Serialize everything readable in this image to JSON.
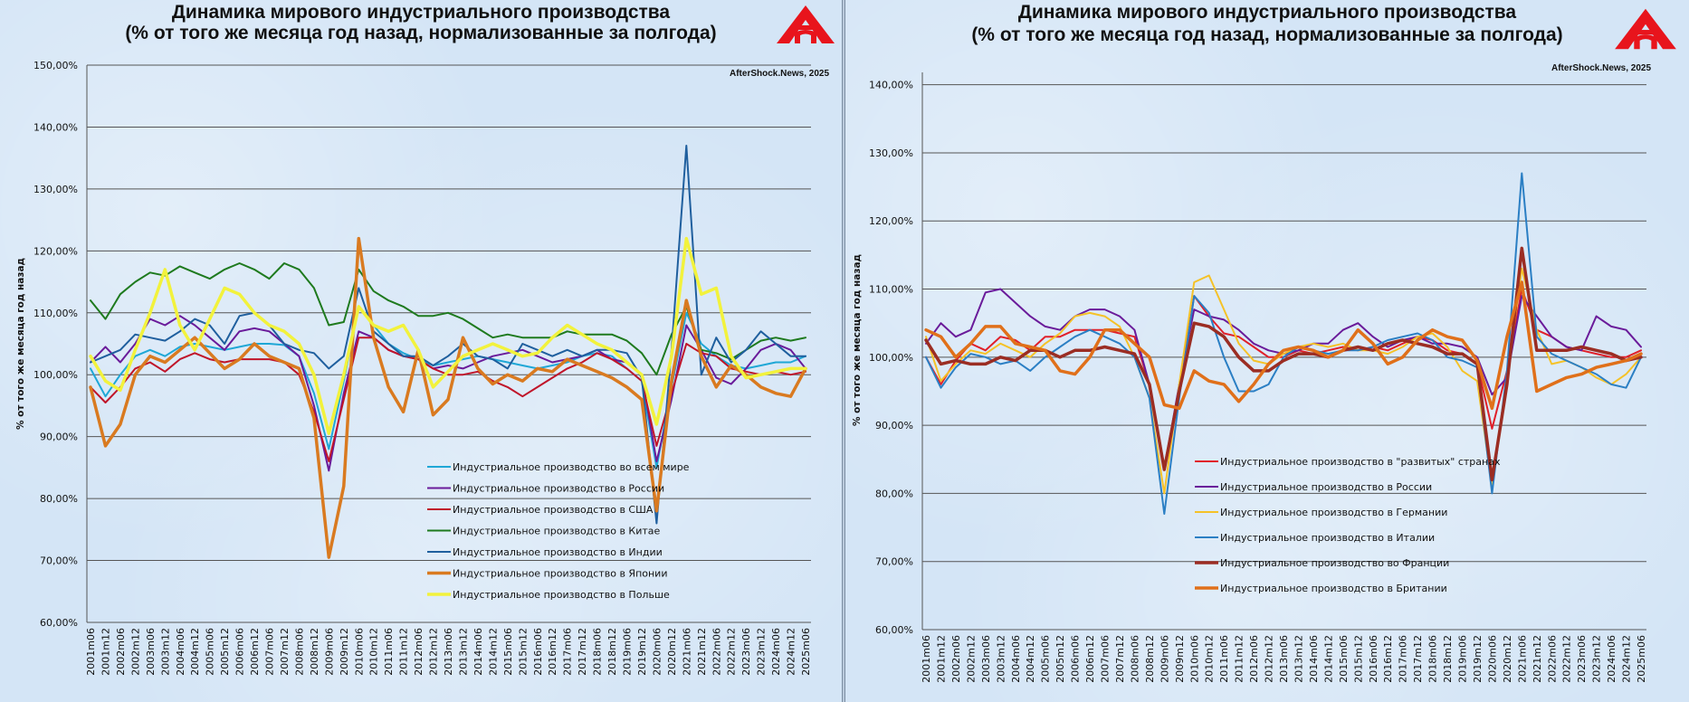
{
  "left_panel": {
    "title_line1": "Динамика мирового индустриального производства",
    "title_line2": "(% от того же месяца год назад, нормализованные за полгода)",
    "credit": "AfterShock.News, 2025",
    "logo": "aftershock-logo-icon"
  },
  "right_panel": {
    "title_line1": "Динамика мирового индустриального производства",
    "title_line2": "(% от того же месяца год назад, нормализованные за полгода)",
    "credit": "AfterShock.News, 2025",
    "logo": "aftershock-logo-icon"
  },
  "chart_data": [
    {
      "type": "line",
      "title": "Динамика мирового индустриального производства (% от того же месяца год назад, нормализованные за полгода)",
      "xlabel": "",
      "ylabel": "% от того же месяца год назад",
      "ylim": [
        60,
        150
      ],
      "yticks": [
        "60,00%",
        "70,00%",
        "80,00%",
        "90,00%",
        "100,00%",
        "110,00%",
        "120,00%",
        "130,00%",
        "140,00%",
        "150,00%"
      ],
      "ytick_values": [
        60,
        70,
        80,
        90,
        100,
        110,
        120,
        130,
        140,
        150
      ],
      "grid": true,
      "legend_position": "bottom-center",
      "x": [
        "2001m06",
        "2001m12",
        "2002m06",
        "2002m12",
        "2003m06",
        "2003m12",
        "2004m06",
        "2004m12",
        "2005m06",
        "2005m12",
        "2006m06",
        "2006m12",
        "2007m06",
        "2007m12",
        "2008m06",
        "2008m12",
        "2009m06",
        "2009m12",
        "2010m06",
        "2010m12",
        "2011m06",
        "2011m12",
        "2012m06",
        "2012m12",
        "2013m06",
        "2013m12",
        "2014m06",
        "2014m12",
        "2015m06",
        "2015m12",
        "2016m06",
        "2016m12",
        "2017m06",
        "2017m12",
        "2018m06",
        "2018m12",
        "2019m06",
        "2019m12",
        "2020m06",
        "2020m12",
        "2021m06",
        "2021m12",
        "2022m06",
        "2022m12",
        "2023m06",
        "2023m12",
        "2024m06",
        "2024m12",
        "2025m06"
      ],
      "series": [
        {
          "name": "Индустриальное производство во всем мире",
          "color": "#1fa7d6",
          "width": 2,
          "values": [
            101,
            96.5,
            100,
            103,
            104,
            103,
            104.5,
            105,
            104.5,
            104,
            104.5,
            105,
            105,
            104.8,
            103,
            97,
            88,
            99,
            111,
            108,
            105,
            103.5,
            102.5,
            101.5,
            102,
            102.5,
            103,
            102.5,
            102,
            101.5,
            101,
            101.5,
            102,
            103,
            103.5,
            103,
            101,
            99,
            85,
            98,
            110,
            105,
            103,
            101.5,
            101,
            101.5,
            102,
            102,
            103
          ]
        },
        {
          "name": "Индустриальное производство в России",
          "color": "#6a1b9a",
          "width": 2,
          "values": [
            102,
            104.5,
            102,
            105,
            109,
            108,
            109.5,
            108,
            106,
            104,
            107,
            107.5,
            107,
            105,
            103,
            95,
            84.5,
            97,
            107,
            106,
            104,
            103,
            102.5,
            101,
            101.5,
            101,
            102,
            103,
            103.5,
            104,
            103,
            102,
            102.5,
            103,
            104,
            102.5,
            102,
            100,
            86,
            96,
            108,
            104,
            99.5,
            98.5,
            101,
            104,
            105,
            104,
            101
          ]
        },
        {
          "name": "Индустриальное производство в США",
          "color": "#c0152a",
          "width": 2,
          "values": [
            98,
            95.5,
            98,
            101,
            102,
            100.5,
            102.5,
            103.5,
            102.5,
            102,
            102.5,
            102.5,
            102.5,
            102,
            100,
            94,
            86,
            96,
            106,
            106,
            104,
            103,
            102.5,
            101,
            100,
            100,
            100.5,
            99,
            98,
            96.5,
            98,
            99.5,
            101,
            102,
            103.5,
            102.5,
            101,
            99,
            88.5,
            97,
            105,
            103.5,
            103,
            101,
            100.5,
            100,
            100.5,
            100,
            100.5
          ]
        },
        {
          "name": "Индустриальное производство в Китае",
          "color": "#1e7a1e",
          "width": 2,
          "values": [
            112,
            109,
            113,
            115,
            116.5,
            116,
            117.5,
            116.5,
            115.5,
            117,
            118,
            117,
            115.5,
            118,
            117,
            114,
            108,
            108.5,
            117,
            113.5,
            112,
            111,
            109.5,
            109.5,
            110,
            109,
            107.5,
            106,
            106.5,
            106,
            106,
            106,
            107,
            106.5,
            106.5,
            106.5,
            105.5,
            103.5,
            100,
            106.5,
            111,
            104,
            103.5,
            102.5,
            104,
            105.5,
            106,
            105.5,
            106
          ]
        },
        {
          "name": "Индустриальное производство в Индии",
          "color": "#1f5f9e",
          "width": 2,
          "values": [
            102,
            103,
            104,
            106.5,
            106,
            105.5,
            107,
            109,
            108,
            105,
            109.5,
            110,
            108,
            105,
            104,
            103.5,
            101,
            103,
            114,
            107,
            105,
            103,
            103,
            101.5,
            103,
            105,
            103,
            102.5,
            101,
            105,
            104,
            103,
            104,
            103,
            104,
            104,
            103.5,
            99.5,
            76,
            104,
            137,
            100,
            106,
            102,
            104,
            107,
            105,
            103,
            103
          ]
        },
        {
          "name": "Индустриальное производство в Японии",
          "color": "#d97a20",
          "width": 3.5,
          "values": [
            98,
            88.5,
            92,
            100,
            103,
            102,
            104,
            106,
            103.5,
            101,
            102.5,
            105,
            103,
            102,
            101,
            93,
            70.5,
            82,
            122,
            106,
            98,
            94,
            104,
            93.5,
            96,
            106,
            101,
            98.5,
            100,
            99,
            101,
            100.5,
            102.5,
            101.5,
            100.5,
            99.5,
            98,
            96,
            78,
            99,
            112,
            103,
            98,
            101.5,
            100,
            98,
            97,
            96.5,
            101
          ]
        },
        {
          "name": "Индустриальное производство в Польше",
          "color": "#f2f23c",
          "width": 3.5,
          "values": [
            103,
            99,
            97.5,
            104,
            110,
            117,
            108,
            104,
            109,
            114,
            113,
            110,
            108,
            107,
            105,
            100,
            90.5,
            100,
            111,
            108,
            107,
            108,
            104,
            98,
            100.5,
            103,
            104,
            105,
            104,
            103,
            103.5,
            106,
            108,
            106.5,
            105,
            104,
            102,
            100,
            92,
            103,
            122,
            113,
            114,
            103,
            99.5,
            100,
            100.5,
            101,
            101
          ]
        }
      ]
    },
    {
      "type": "line",
      "title": "Динамика мирового индустриального производства (% от того же месяца год назад, нормализованные за полгода)",
      "xlabel": "",
      "ylabel": "% от того же месяца год назад",
      "ylim": [
        60,
        145
      ],
      "yticks": [
        "60,00%",
        "70,00%",
        "80,00%",
        "90,00%",
        "100,00%",
        "110,00%",
        "120,00%",
        "130,00%",
        "140,00%"
      ],
      "ytick_values": [
        60,
        70,
        80,
        90,
        100,
        110,
        120,
        130,
        140
      ],
      "grid": true,
      "legend_position": "bottom-center",
      "x": [
        "2001m06",
        "2001m12",
        "2002m06",
        "2002m12",
        "2003m06",
        "2003m12",
        "2004m06",
        "2004m12",
        "2005m06",
        "2005m12",
        "2006m06",
        "2006m12",
        "2007m06",
        "2007m12",
        "2008m06",
        "2008m12",
        "2009m06",
        "2009m12",
        "2010m06",
        "2010m12",
        "2011m06",
        "2011m12",
        "2012m06",
        "2012m12",
        "2013m06",
        "2013m12",
        "2014m06",
        "2014m12",
        "2015m06",
        "2015m12",
        "2016m06",
        "2016m12",
        "2017m06",
        "2017m12",
        "2018m06",
        "2018m12",
        "2019m06",
        "2019m12",
        "2020m06",
        "2020m12",
        "2021m06",
        "2021m12",
        "2022m06",
        "2022m12",
        "2023m06",
        "2023m12",
        "2024m06",
        "2024m12",
        "2025m06"
      ],
      "series": [
        {
          "name": "Индустриальное производство в \"развитых\" странах",
          "color": "#e0202a",
          "width": 2,
          "values": [
            100,
            96,
            99.5,
            102,
            101,
            103,
            102.5,
            101,
            103,
            103,
            104,
            104,
            104,
            103.5,
            103,
            96,
            84,
            95,
            109,
            106,
            103.5,
            103,
            101.5,
            100,
            100,
            101,
            100.5,
            101,
            101.5,
            101,
            101.5,
            101,
            102,
            103,
            102.5,
            101,
            100.5,
            99,
            89.5,
            98,
            110,
            104,
            103,
            101.5,
            101,
            100.5,
            100,
            100,
            101
          ]
        },
        {
          "name": "Индустриальное производство в России",
          "color": "#6a1b9a",
          "width": 2,
          "values": [
            102,
            105,
            103,
            104,
            109.5,
            110,
            108,
            106,
            104.5,
            104,
            106,
            107,
            107,
            106,
            104,
            96,
            83.5,
            96,
            107,
            106,
            105.5,
            104,
            102,
            101,
            100.5,
            101,
            102,
            102,
            104,
            105,
            103,
            101.5,
            102.5,
            103,
            102,
            102,
            101.5,
            100,
            94.5,
            97,
            109,
            106,
            103,
            101.5,
            101,
            106,
            104.5,
            104,
            101.5
          ]
        },
        {
          "name": "Индустриальное производство в Германии",
          "color": "#f5c228",
          "width": 2,
          "values": [
            103,
            96.5,
            99,
            101,
            100.5,
            102,
            101,
            100,
            102,
            103.5,
            106,
            106.5,
            106,
            104.5,
            100,
            94,
            80,
            96,
            111,
            112,
            107,
            102,
            99.5,
            99,
            100.5,
            101.5,
            102,
            101.5,
            102,
            101,
            101,
            100.5,
            101.5,
            103,
            103.5,
            101.5,
            98,
            96.5,
            81,
            97,
            113,
            104,
            99,
            99.5,
            98.5,
            97,
            96,
            97.5,
            100
          ]
        },
        {
          "name": "Индустриальное производство в Италии",
          "color": "#2b7fc4",
          "width": 2,
          "values": [
            100,
            95.5,
            98.5,
            100.5,
            100,
            99,
            99.5,
            98,
            100,
            101.5,
            103,
            104,
            103,
            102,
            100,
            94,
            77,
            94,
            109,
            106.5,
            100,
            95,
            95,
            96,
            100,
            101.5,
            101,
            100.5,
            101,
            101,
            101.5,
            102.5,
            103,
            103.5,
            102.5,
            100,
            99.5,
            98.5,
            80,
            98,
            127,
            103,
            100.5,
            99.5,
            98.5,
            97.5,
            96,
            95.5,
            100
          ]
        },
        {
          "name": "Индустриальное производство во Франции",
          "color": "#9b2d23",
          "width": 3.5,
          "values": [
            102.5,
            99,
            99.5,
            99,
            99,
            100,
            99.5,
            101,
            101,
            100,
            101,
            101,
            101.5,
            101,
            100.5,
            96,
            83.5,
            95,
            105,
            104.5,
            103,
            100,
            98,
            98,
            99.5,
            100.5,
            100.5,
            100,
            101,
            101.5,
            101,
            102,
            102.5,
            102,
            101.5,
            100.5,
            100.5,
            99,
            82,
            96,
            116,
            101,
            101,
            101,
            101.5,
            101,
            100.5,
            99.5,
            100
          ]
        },
        {
          "name": "Индустриальное производство в Британии",
          "color": "#e0701a",
          "width": 3.5,
          "values": [
            104,
            103,
            100,
            102,
            104.5,
            104.5,
            102,
            101.5,
            101,
            98,
            97.5,
            100,
            104,
            104,
            102,
            100,
            93,
            92.5,
            98,
            96.5,
            96,
            93.5,
            96,
            99,
            101,
            101.5,
            101,
            100,
            101,
            104,
            102,
            99,
            100,
            102.5,
            104,
            103,
            102.5,
            99.5,
            92.5,
            103,
            111,
            95,
            96,
            97,
            97.5,
            98.5,
            99,
            99.5,
            100.5
          ]
        }
      ]
    }
  ]
}
